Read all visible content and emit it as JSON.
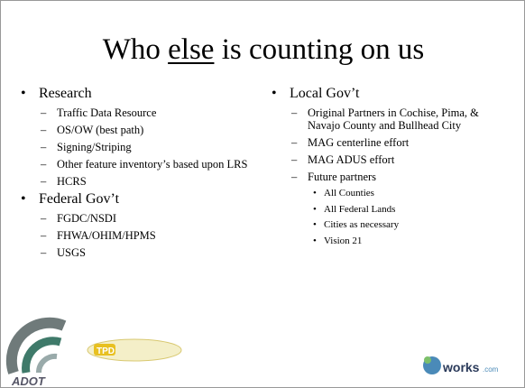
{
  "slide": {
    "title": {
      "before": "Who",
      "emphasis": "else",
      "after": "is counting on us"
    },
    "left": [
      {
        "text": "Research",
        "items": [
          {
            "text": "Traffic Data Resource"
          },
          {
            "text": "OS/OW (best path)"
          },
          {
            "text": "Signing/Striping"
          },
          {
            "text": "Other feature inventory’s based upon LRS"
          },
          {
            "text": "HCRS"
          }
        ]
      },
      {
        "text": "Federal Gov’t",
        "items": [
          {
            "text": "FGDC/NSDI"
          },
          {
            "text": "FHWA/OHIM/HPMS"
          },
          {
            "text": "USGS"
          }
        ]
      }
    ],
    "right": [
      {
        "text": "Local Gov’t",
        "items": [
          {
            "text": "Original Partners in Cochise, Pima, & Navajo County and Bullhead City"
          },
          {
            "text": "MAG centerline effort"
          },
          {
            "text": "MAG ADUS effort"
          },
          {
            "text": "Future partners",
            "items": [
              {
                "text": "All Counties"
              },
              {
                "text": "All Federal Lands"
              },
              {
                "text": "Cities as necessary"
              },
              {
                "text": "Vision 21"
              }
            ]
          }
        ]
      }
    ],
    "logos": {
      "adot": "ADOT",
      "tpd": "TPD",
      "gis": "works",
      "gis_suffix": ".com"
    }
  }
}
